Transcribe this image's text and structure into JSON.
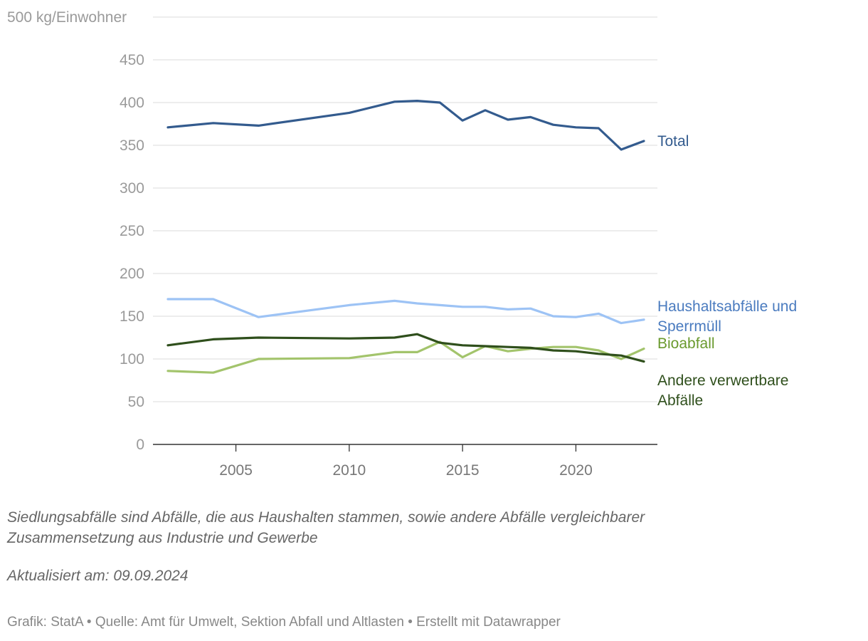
{
  "chart_data": {
    "type": "line",
    "ylabel": "kg/Einwohner",
    "ylim": [
      0,
      500
    ],
    "yticks": [
      0,
      50,
      100,
      150,
      200,
      250,
      300,
      350,
      400,
      450,
      500
    ],
    "ytick_labels": [
      "0",
      "50",
      "100",
      "150",
      "200",
      "250",
      "300",
      "350",
      "400",
      "450",
      "500 kg/Einwohner"
    ],
    "xlim": [
      2002,
      2023
    ],
    "xticks": [
      2005,
      2010,
      2015,
      2020
    ],
    "xtick_labels": [
      "2005",
      "2010",
      "2015",
      "2020"
    ],
    "grid": true,
    "series": [
      {
        "name": "Total",
        "label_lines": [
          "Total"
        ],
        "color": "#335b8e",
        "x": [
          2002,
          2004,
          2006,
          2010,
          2012,
          2013,
          2014,
          2015,
          2016,
          2017,
          2018,
          2019,
          2020,
          2021,
          2022,
          2023
        ],
        "values": [
          371,
          376,
          373,
          388,
          401,
          402,
          400,
          379,
          391,
          380,
          383,
          374,
          371,
          370,
          345,
          355
        ]
      },
      {
        "name": "Haushaltsabfälle und Sperrmüll",
        "label_lines": [
          "Haushaltsabfälle und",
          "Sperrmüll"
        ],
        "color": "#9dc3f5",
        "label_color": "#4a7bbf",
        "x": [
          2002,
          2004,
          2006,
          2010,
          2012,
          2013,
          2014,
          2015,
          2016,
          2017,
          2018,
          2019,
          2020,
          2021,
          2022,
          2023
        ],
        "values": [
          170,
          170,
          149,
          163,
          168,
          165,
          163,
          161,
          161,
          158,
          159,
          150,
          149,
          153,
          142,
          146
        ]
      },
      {
        "name": "Bioabfall",
        "label_lines": [
          "Bioabfall"
        ],
        "color": "#a3c46c",
        "label_color": "#6a9a2e",
        "x": [
          2002,
          2004,
          2006,
          2010,
          2012,
          2013,
          2014,
          2015,
          2016,
          2017,
          2018,
          2019,
          2020,
          2021,
          2022,
          2023
        ],
        "values": [
          86,
          84,
          100,
          101,
          108,
          108,
          120,
          102,
          115,
          109,
          112,
          114,
          114,
          110,
          100,
          112
        ]
      },
      {
        "name": "Andere verwertbare Abfälle",
        "label_lines": [
          "Andere verwertbare",
          "Abfälle"
        ],
        "color": "#2f4f1c",
        "x": [
          2002,
          2004,
          2006,
          2010,
          2012,
          2013,
          2014,
          2015,
          2016,
          2017,
          2018,
          2019,
          2020,
          2021,
          2022,
          2023
        ],
        "values": [
          116,
          123,
          125,
          124,
          125,
          129,
          119,
          116,
          115,
          114,
          113,
          110,
          109,
          106,
          104,
          97
        ]
      }
    ]
  },
  "notes": {
    "description": "Siedlungsabfälle sind Abfälle, die aus Haushalten stammen, sowie andere Abfälle vergleichbarer Zusammensetzung aus Industrie und Gewerbe",
    "updated": "Aktualisiert am: 09.09.2024"
  },
  "footer": {
    "text": "Grafik: StatA • Quelle: Amt für Umwelt, Sektion Abfall und Altlasten • Erstellt mit Datawrapper"
  }
}
